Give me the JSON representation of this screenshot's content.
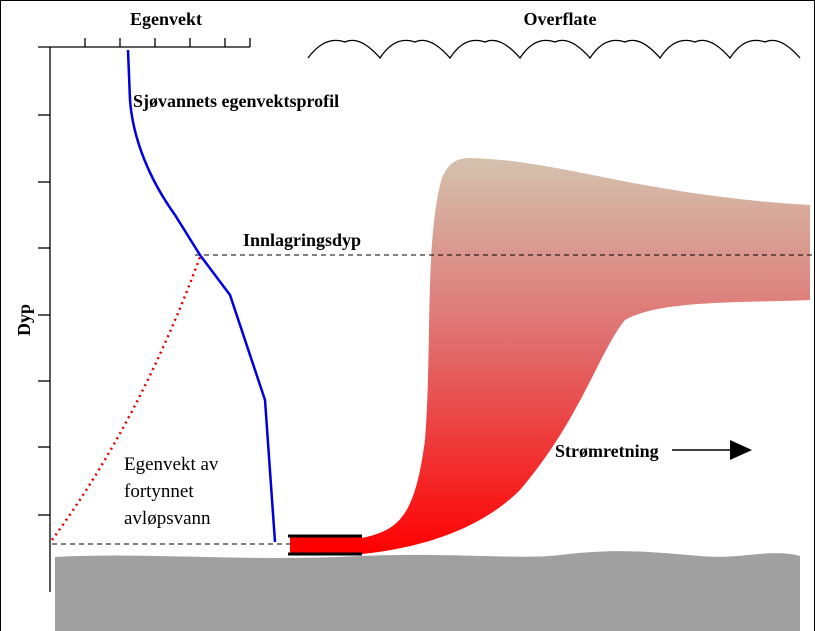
{
  "labels": {
    "density_axis": "Egenvekt",
    "surface": "Overflate",
    "profile": "Sjøvannets egenvektsprofil",
    "trapping_depth": "Innlagringsdyp",
    "depth_axis": "Dyp",
    "diluted_density": [
      "Egenvekt av",
      "fortynnet",
      "avløpsvann"
    ],
    "current": "Strømretning"
  }
}
